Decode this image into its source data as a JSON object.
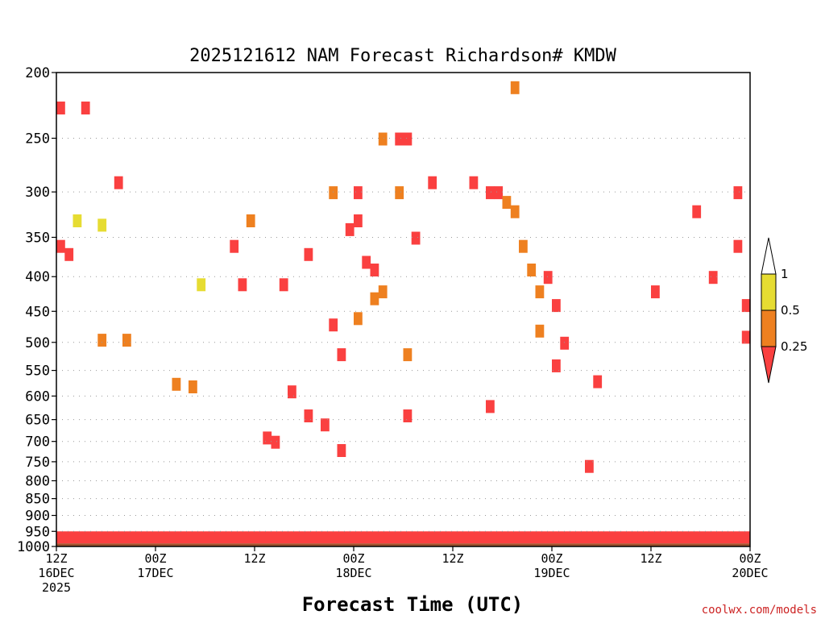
{
  "chart_data": {
    "type": "heatmap",
    "title": "2025121612 NAM Forecast Richardson# KMDW",
    "xlabel": "Forecast Time (UTC)",
    "credit": "coolwx.com/models",
    "y_axis": {
      "label": "",
      "scale": "log",
      "reversed": true,
      "ylim": [
        1000,
        200
      ],
      "ticks": [
        "200",
        "250",
        "300",
        "350",
        "400",
        "450",
        "500",
        "550",
        "600",
        "650",
        "700",
        "750",
        "800",
        "850",
        "900",
        "950",
        "1000"
      ]
    },
    "x_axis": {
      "xlim": [
        "2025-12-16T12Z",
        "2025-12-20T00Z"
      ],
      "ticks": [
        {
          "time": "2025-12-16T12Z",
          "line1": "12Z",
          "line2": "16DEC",
          "line3": "2025"
        },
        {
          "time": "2025-12-17T00Z",
          "line1": "00Z",
          "line2": "17DEC",
          "line3": ""
        },
        {
          "time": "2025-12-17T12Z",
          "line1": "12Z",
          "line2": "",
          "line3": ""
        },
        {
          "time": "2025-12-18T00Z",
          "line1": "00Z",
          "line2": "18DEC",
          "line3": ""
        },
        {
          "time": "2025-12-18T12Z",
          "line1": "12Z",
          "line2": "",
          "line3": ""
        },
        {
          "time": "2025-12-19T00Z",
          "line1": "00Z",
          "line2": "19DEC",
          "line3": ""
        },
        {
          "time": "2025-12-19T12Z",
          "line1": "12Z",
          "line2": "",
          "line3": ""
        },
        {
          "time": "2025-12-20T00Z",
          "line1": "00Z",
          "line2": "20DEC",
          "line3": ""
        }
      ]
    },
    "legend": {
      "placement": "right",
      "levels": [
        "0.25",
        "0.5",
        "1"
      ],
      "bins": [
        {
          "range": "< 0.25",
          "color": "#fa4040"
        },
        {
          "range": "0.25-0.5",
          "color": "#ee8020"
        },
        {
          "range": "0.5-1",
          "color": "#e6dc32"
        },
        {
          "range": "> 1",
          "color": "#ffffff"
        }
      ]
    },
    "surface_color": "#a0522d",
    "grid": "dotted at pressure ticks",
    "cells": [
      {
        "t": "2025-12-16T12Z",
        "p": 225,
        "cat": 0
      },
      {
        "t": "2025-12-16T15Z",
        "p": 225,
        "cat": 0
      },
      {
        "t": "2025-12-16T12Z",
        "p": 360,
        "cat": 0
      },
      {
        "t": "2025-12-16T13Z",
        "p": 370,
        "cat": 0
      },
      {
        "t": "2025-12-16T19Z",
        "p": 290,
        "cat": 0
      },
      {
        "t": "2025-12-16T14Z",
        "p": 330,
        "cat": 2
      },
      {
        "t": "2025-12-16T17Z",
        "p": 335,
        "cat": 2
      },
      {
        "t": "2025-12-16T20Z",
        "p": 495,
        "cat": 1
      },
      {
        "t": "2025-12-16T17Z",
        "p": 495,
        "cat": 1
      },
      {
        "t": "2025-12-17T02Z",
        "p": 575,
        "cat": 1
      },
      {
        "t": "2025-12-17T04Z",
        "p": 580,
        "cat": 1
      },
      {
        "t": "2025-12-17T05Z",
        "p": 410,
        "cat": 2
      },
      {
        "t": "2025-12-17T09Z",
        "p": 360,
        "cat": 0
      },
      {
        "t": "2025-12-17T10Z",
        "p": 410,
        "cat": 0
      },
      {
        "t": "2025-12-17T11Z",
        "p": 330,
        "cat": 1
      },
      {
        "t": "2025-12-17T15Z",
        "p": 410,
        "cat": 0
      },
      {
        "t": "2025-12-17T13Z",
        "p": 690,
        "cat": 0
      },
      {
        "t": "2025-12-17T14Z",
        "p": 700,
        "cat": 0
      },
      {
        "t": "2025-12-17T16Z",
        "p": 590,
        "cat": 0
      },
      {
        "t": "2025-12-17T18Z",
        "p": 640,
        "cat": 0
      },
      {
        "t": "2025-12-17T20Z",
        "p": 660,
        "cat": 0
      },
      {
        "t": "2025-12-17T18Z",
        "p": 370,
        "cat": 0
      },
      {
        "t": "2025-12-17T21Z",
        "p": 470,
        "cat": 0
      },
      {
        "t": "2025-12-17T22Z",
        "p": 520,
        "cat": 0
      },
      {
        "t": "2025-12-17T23Z",
        "p": 340,
        "cat": 0
      },
      {
        "t": "2025-12-18T00Z",
        "p": 300,
        "cat": 0
      },
      {
        "t": "2025-12-18T00Z",
        "p": 330,
        "cat": 0
      },
      {
        "t": "2025-12-18T01Z",
        "p": 380,
        "cat": 0
      },
      {
        "t": "2025-12-18T02Z",
        "p": 390,
        "cat": 0
      },
      {
        "t": "2025-12-17T22Z",
        "p": 720,
        "cat": 0
      },
      {
        "t": "2025-12-17T21Z",
        "p": 300,
        "cat": 1
      },
      {
        "t": "2025-12-18T00Z",
        "p": 460,
        "cat": 1
      },
      {
        "t": "2025-12-18T02Z",
        "p": 430,
        "cat": 1
      },
      {
        "t": "2025-12-18T03Z",
        "p": 250,
        "cat": 1
      },
      {
        "t": "2025-12-18T05Z",
        "p": 250,
        "cat": 0
      },
      {
        "t": "2025-12-18T06Z",
        "p": 250,
        "cat": 0
      },
      {
        "t": "2025-12-18T05Z",
        "p": 300,
        "cat": 1
      },
      {
        "t": "2025-12-18T03Z",
        "p": 420,
        "cat": 1
      },
      {
        "t": "2025-12-18T06Z",
        "p": 520,
        "cat": 1
      },
      {
        "t": "2025-12-18T07Z",
        "p": 350,
        "cat": 0
      },
      {
        "t": "2025-12-18T09Z",
        "p": 290,
        "cat": 0
      },
      {
        "t": "2025-12-18T06Z",
        "p": 640,
        "cat": 0
      },
      {
        "t": "2025-12-18T14Z",
        "p": 290,
        "cat": 0
      },
      {
        "t": "2025-12-18T16Z",
        "p": 300,
        "cat": 0
      },
      {
        "t": "2025-12-18T17Z",
        "p": 300,
        "cat": 0
      },
      {
        "t": "2025-12-18T18Z",
        "p": 310,
        "cat": 1
      },
      {
        "t": "2025-12-18T19Z",
        "p": 320,
        "cat": 1
      },
      {
        "t": "2025-12-18T16Z",
        "p": 620,
        "cat": 0
      },
      {
        "t": "2025-12-18T20Z",
        "p": 360,
        "cat": 1
      },
      {
        "t": "2025-12-18T21Z",
        "p": 390,
        "cat": 1
      },
      {
        "t": "2025-12-18T22Z",
        "p": 420,
        "cat": 1
      },
      {
        "t": "2025-12-18T22Z",
        "p": 480,
        "cat": 1
      },
      {
        "t": "2025-12-18T23Z",
        "p": 400,
        "cat": 0
      },
      {
        "t": "2025-12-19T00Z",
        "p": 440,
        "cat": 0
      },
      {
        "t": "2025-12-19T00Z",
        "p": 540,
        "cat": 0
      },
      {
        "t": "2025-12-19T01Z",
        "p": 500,
        "cat": 0
      },
      {
        "t": "2025-12-18T19Z",
        "p": 210,
        "cat": 1
      },
      {
        "t": "2025-12-19T05Z",
        "p": 570,
        "cat": 0
      },
      {
        "t": "2025-12-19T04Z",
        "p": 760,
        "cat": 0
      },
      {
        "t": "2025-12-19T12Z",
        "p": 420,
        "cat": 0
      },
      {
        "t": "2025-12-19T17Z",
        "p": 320,
        "cat": 0
      },
      {
        "t": "2025-12-19T19Z",
        "p": 400,
        "cat": 0
      },
      {
        "t": "2025-12-19T22Z",
        "p": 300,
        "cat": 0
      },
      {
        "t": "2025-12-19T23Z",
        "p": 440,
        "cat": 0
      },
      {
        "t": "2025-12-19T23Z",
        "p": 490,
        "cat": 0
      },
      {
        "t": "2025-12-19T22Z",
        "p": 360,
        "cat": 0
      }
    ]
  }
}
